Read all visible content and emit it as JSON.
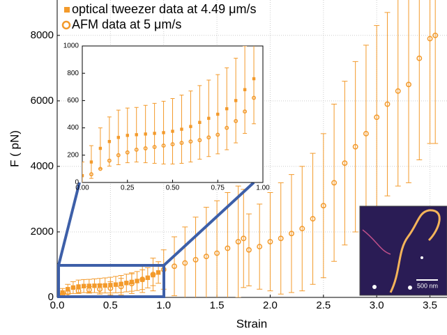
{
  "chart_data": [
    {
      "type": "scatter",
      "xlabel": "Strain",
      "ylabel": "F ( pN)",
      "xlim": [
        0,
        3.66
      ],
      "ylim": [
        0,
        9080
      ],
      "xticks": [
        {
          "value": 0,
          "label": "0.0"
        },
        {
          "value": 0.5,
          "label": "0.5"
        },
        {
          "value": 1,
          "label": "1.0"
        },
        {
          "value": 1.5,
          "label": "1.5"
        },
        {
          "value": 2,
          "label": "2.0"
        },
        {
          "value": 2.5,
          "label": "2.5"
        },
        {
          "value": 3,
          "label": "3.0"
        },
        {
          "value": 3.5,
          "label": "3.5"
        }
      ],
      "yticks": [
        0,
        2000,
        4000,
        6000,
        8000
      ],
      "grid": true,
      "series": [
        {
          "name": "optical tweezer data at 4.49 μm/s",
          "color": "#f39a2b",
          "marker": "square",
          "x": [
            0,
            0.05,
            0.1,
            0.15,
            0.2,
            0.25,
            0.3,
            0.35,
            0.4,
            0.45,
            0.5,
            0.55,
            0.6,
            0.65,
            0.7,
            0.75,
            0.8,
            0.85,
            0.9,
            0.95
          ],
          "values": [
            50,
            150,
            250,
            300,
            330,
            345,
            350,
            355,
            360,
            365,
            375,
            390,
            410,
            440,
            470,
            500,
            540,
            600,
            680,
            760
          ],
          "errors": [
            100,
            120,
            150,
            180,
            200,
            200,
            200,
            210,
            220,
            230,
            240,
            250,
            260,
            270,
            280,
            290,
            300,
            310,
            320,
            330
          ]
        },
        {
          "name": "AFM data at 5 μm/s",
          "color": "#f39a2b",
          "marker": "circle",
          "x": [
            0.05,
            0.1,
            0.2,
            0.3,
            0.4,
            0.5,
            0.6,
            0.7,
            0.8,
            0.9,
            1.0,
            1.1,
            1.2,
            1.3,
            1.4,
            1.5,
            1.6,
            1.7,
            1.75,
            1.8,
            1.9,
            2.0,
            2.1,
            2.2,
            2.3,
            2.4,
            2.5,
            2.6,
            2.7,
            2.8,
            2.9,
            3.0,
            3.1,
            3.2,
            3.3,
            3.4,
            3.5,
            3.55
          ],
          "values": [
            100,
            150,
            200,
            230,
            250,
            280,
            330,
            420,
            550,
            700,
            850,
            950,
            1050,
            1150,
            1250,
            1350,
            1500,
            1700,
            1800,
            1450,
            1550,
            1700,
            1800,
            1950,
            2100,
            2400,
            2800,
            3500,
            4100,
            4600,
            5000,
            5500,
            5900,
            6300,
            6500,
            7300,
            7900,
            8000
          ],
          "errors": [
            30,
            50,
            80,
            100,
            150,
            200,
            250,
            300,
            400,
            500,
            600,
            900,
            1100,
            1300,
            1500,
            1600,
            1700,
            1700,
            1500,
            1100,
            1300,
            1500,
            1700,
            1800,
            1900,
            2000,
            2200,
            2400,
            2500,
            2600,
            2700,
            2800,
            2800,
            2900,
            3000,
            3100,
            3200,
            3300
          ]
        }
      ],
      "annotations": [
        "500 nm"
      ]
    },
    {
      "type": "scatter",
      "xlim": [
        0,
        1
      ],
      "ylim": [
        0,
        1000
      ],
      "xticks": [
        {
          "value": 0,
          "label": "0.00"
        },
        {
          "value": 0.25,
          "label": "0.25"
        },
        {
          "value": 0.5,
          "label": "0.50"
        },
        {
          "value": 0.75,
          "label": "0.75"
        },
        {
          "value": 1,
          "label": "1.00"
        }
      ],
      "yticks": [
        0,
        200,
        400,
        600,
        800,
        1000
      ],
      "grid": false,
      "series": [
        {
          "color": "#f39a2b",
          "marker": "square",
          "x": [
            0,
            0.05,
            0.1,
            0.15,
            0.2,
            0.25,
            0.3,
            0.35,
            0.4,
            0.45,
            0.5,
            0.55,
            0.6,
            0.65,
            0.7,
            0.75,
            0.8,
            0.85,
            0.9,
            0.95
          ],
          "values": [
            50,
            150,
            250,
            300,
            330,
            345,
            350,
            355,
            360,
            365,
            375,
            390,
            410,
            440,
            470,
            500,
            540,
            600,
            680,
            760
          ],
          "errors": [
            100,
            120,
            150,
            180,
            200,
            200,
            200,
            210,
            220,
            230,
            240,
            250,
            260,
            270,
            280,
            290,
            300,
            310,
            320,
            330
          ]
        },
        {
          "color": "#f39a2b",
          "marker": "circle",
          "x": [
            0.05,
            0.1,
            0.15,
            0.2,
            0.25,
            0.3,
            0.35,
            0.4,
            0.45,
            0.5,
            0.55,
            0.6,
            0.65,
            0.7,
            0.75,
            0.8,
            0.85,
            0.9,
            0.95
          ],
          "values": [
            60,
            100,
            160,
            200,
            220,
            240,
            250,
            260,
            270,
            280,
            290,
            300,
            310,
            330,
            350,
            400,
            450,
            520,
            620
          ]
        }
      ]
    }
  ]
}
